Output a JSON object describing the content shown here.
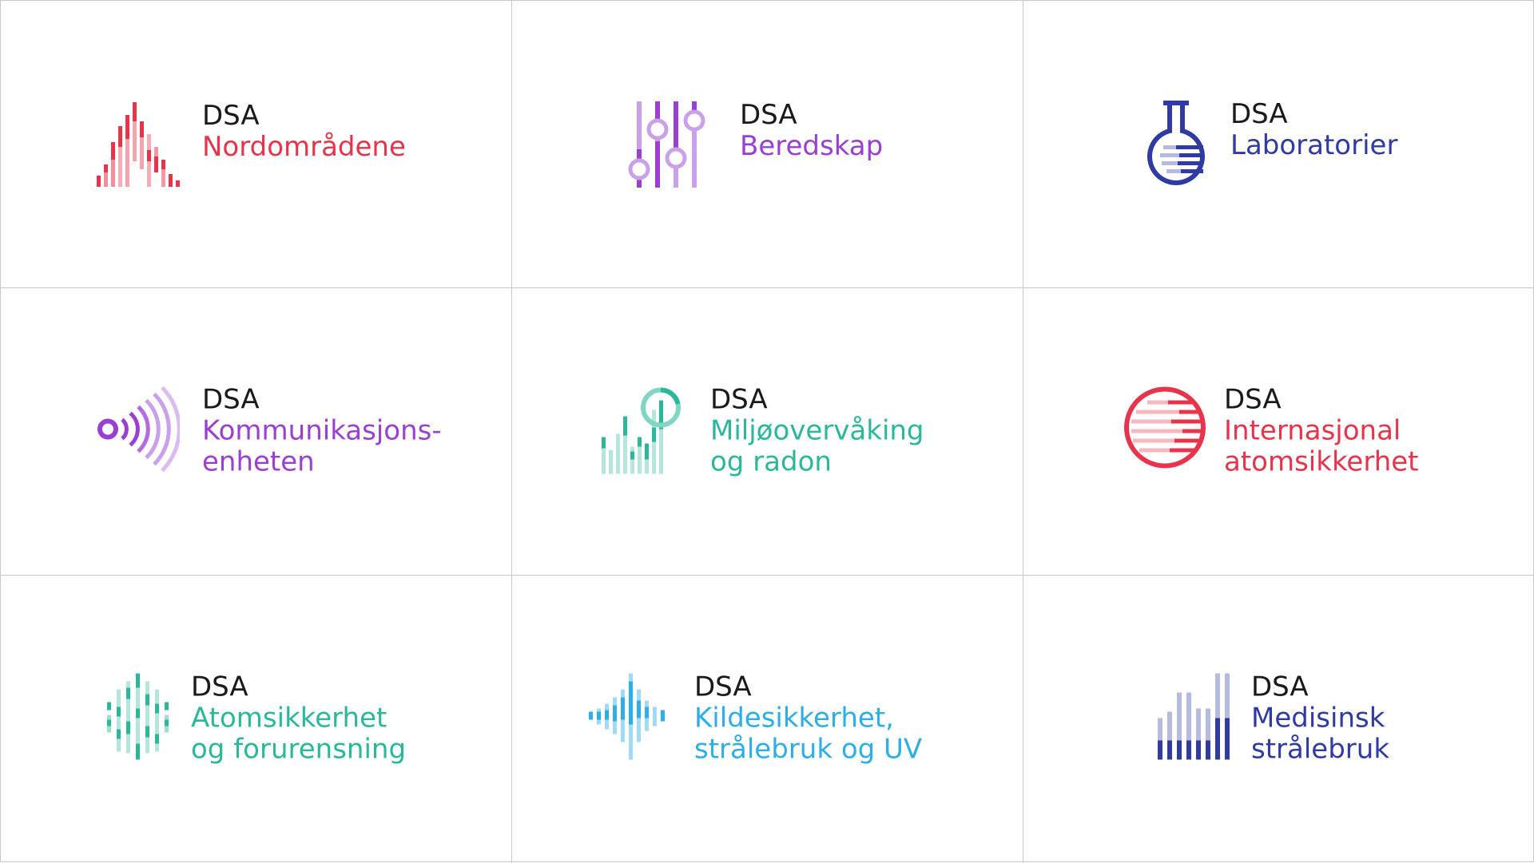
{
  "logos": [
    {
      "abbrev": "DSA",
      "name": "Nordområdene",
      "color": "#e8334a",
      "icon": "mountain-bars-icon"
    },
    {
      "abbrev": "DSA",
      "name": "Beredskap",
      "color": "#9b3fd3",
      "icon": "slider-controls-icon"
    },
    {
      "abbrev": "DSA",
      "name": "Laboratorier",
      "color": "#2f3aa3",
      "icon": "lab-flask-icon"
    },
    {
      "abbrev": "DSA",
      "name": "Kommunikasjons-\nenheten",
      "color": "#9b3fd3",
      "icon": "broadcast-waves-icon"
    },
    {
      "abbrev": "DSA",
      "name": "Miljøovervåking\nog radon",
      "color": "#2bb89a",
      "icon": "tree-bars-icon"
    },
    {
      "abbrev": "DSA",
      "name": "Internasjonal\natomsikkerhet",
      "color": "#e8334a",
      "icon": "globe-lines-icon"
    },
    {
      "abbrev": "DSA",
      "name": "Atomsikkerhet\nog forurensning",
      "color": "#2bb89a",
      "icon": "atom-columns-icon"
    },
    {
      "abbrev": "DSA",
      "name": "Kildesikkerhet,\nstrålebruk og UV",
      "color": "#2eaee8",
      "icon": "waveform-icon"
    },
    {
      "abbrev": "DSA",
      "name": "Medisinsk\nstrålebruk",
      "color": "#2f3aa3",
      "icon": "dose-bars-icon"
    }
  ]
}
